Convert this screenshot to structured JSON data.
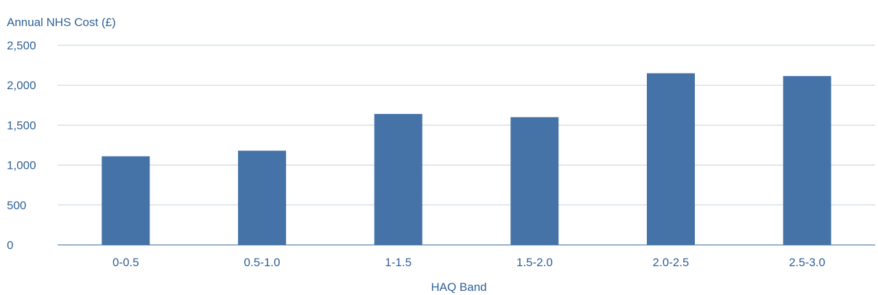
{
  "chart_data": {
    "type": "bar",
    "title": "",
    "ylabel": "Annual NHS Cost (£)",
    "xlabel": "HAQ Band",
    "categories": [
      "0-0.5",
      "0.5-1.0",
      "1-1.5",
      "1.5-2.0",
      "2.0-2.5",
      "2.5-3.0"
    ],
    "values": [
      1110,
      1180,
      1640,
      1600,
      2150,
      2115
    ],
    "ylim": [
      0,
      2500
    ],
    "yticks": [
      0,
      500,
      1000,
      1500,
      2000,
      2500
    ],
    "ytick_labels": [
      "0",
      "500",
      "1,000",
      "1,500",
      "2,000",
      "2,500"
    ],
    "grid": true,
    "legend": "none",
    "colors": {
      "bar": "#4573a8",
      "text": "#2f5f96",
      "grid": "#c2cfdb",
      "axis": "#2f5f96"
    }
  }
}
